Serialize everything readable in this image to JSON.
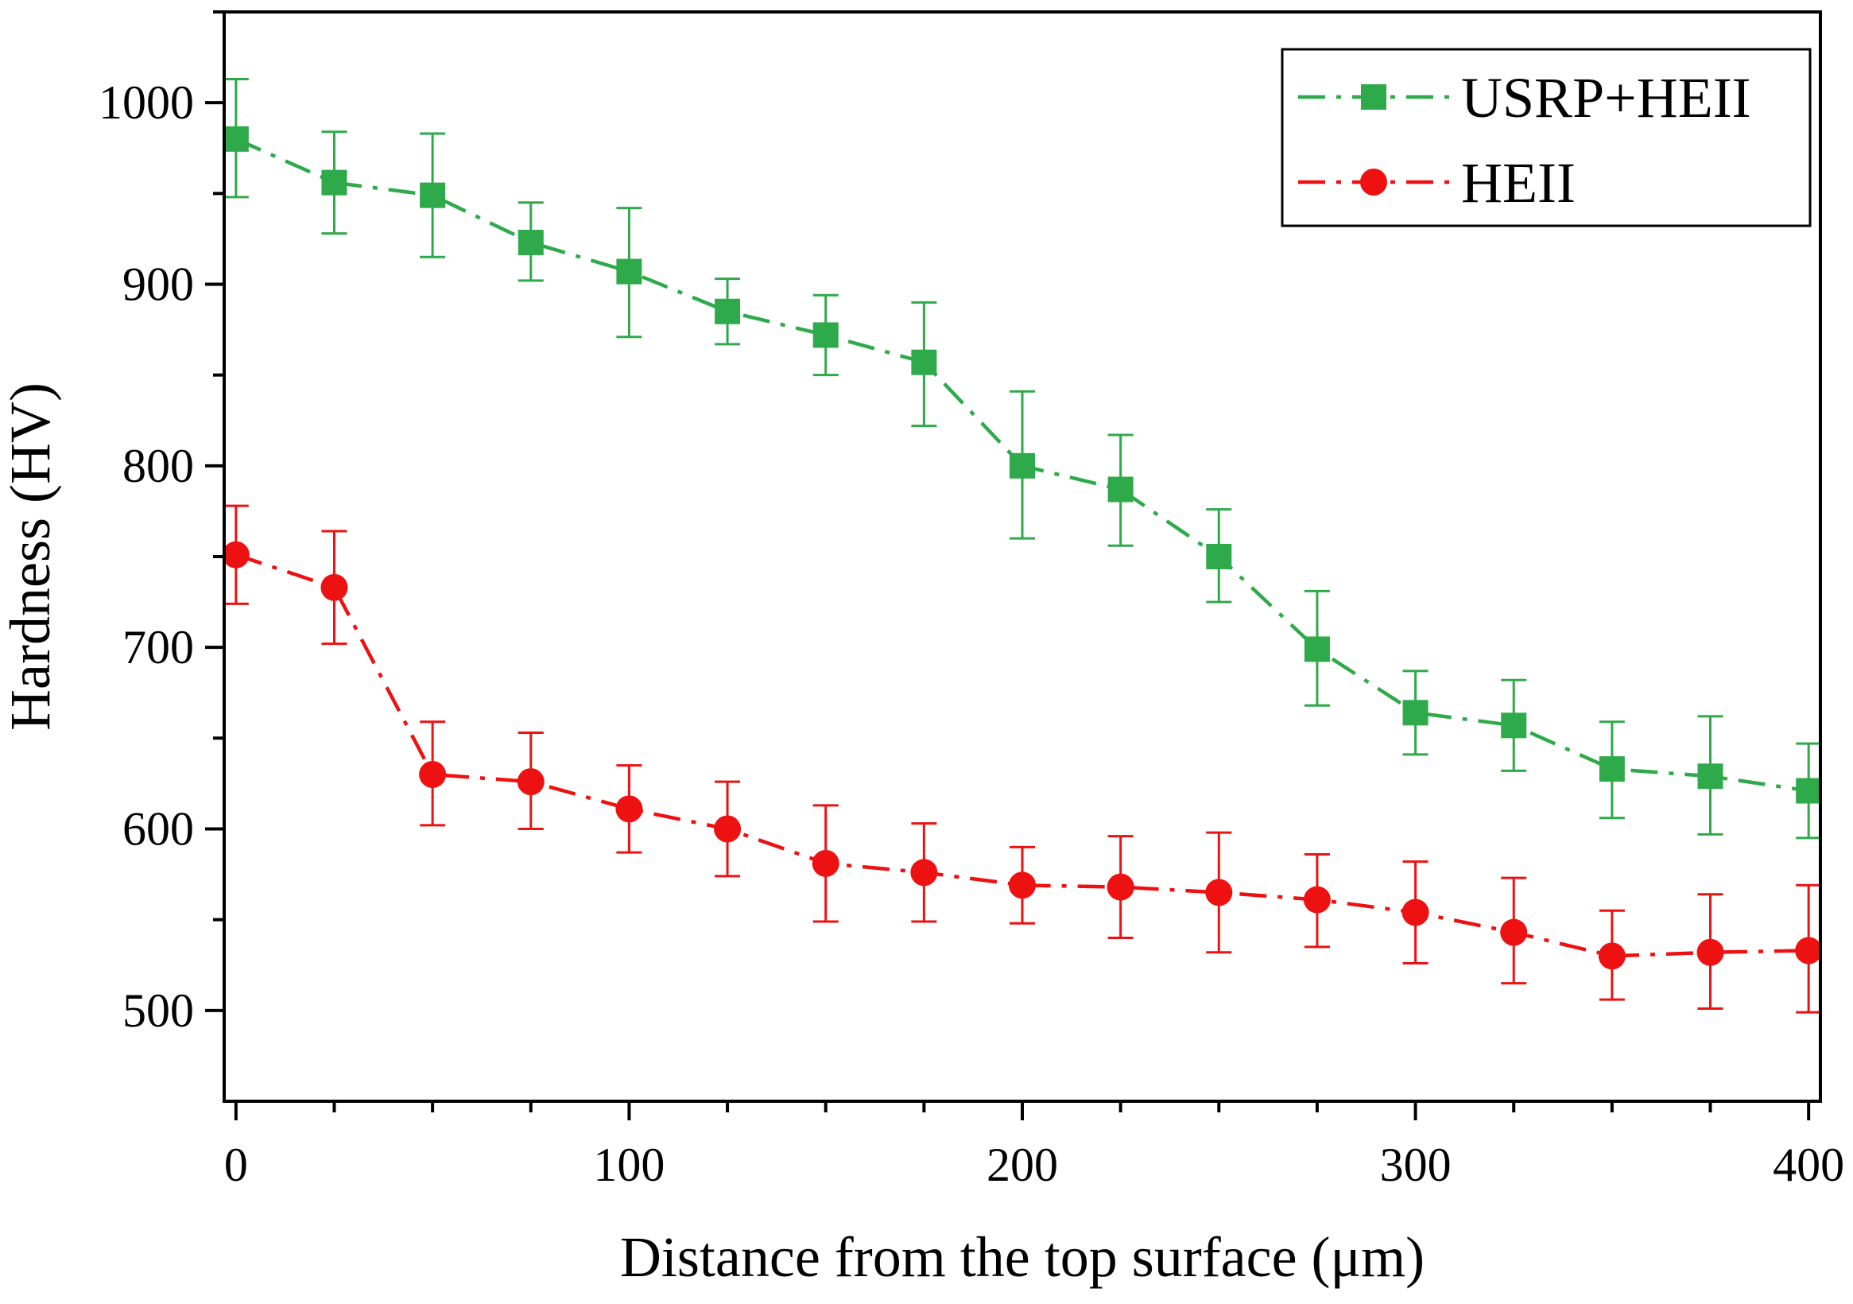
{
  "chart_data": {
    "type": "line",
    "title": "",
    "xlabel": "Distance from the top surface (μm)",
    "ylabel": "Hardness (HV)",
    "xlim": [
      -3,
      403
    ],
    "ylim": [
      450,
      1050
    ],
    "x_ticks": [
      0,
      100,
      200,
      300,
      400
    ],
    "x_tick_labels": [
      "0",
      "100",
      "200",
      "300",
      "400"
    ],
    "y_ticks": [
      500,
      600,
      700,
      800,
      900,
      1000
    ],
    "y_tick_labels": [
      "500",
      "600",
      "700",
      "800",
      "900",
      "1000"
    ],
    "legend_position": "top-right",
    "x": [
      0,
      25,
      50,
      75,
      100,
      125,
      150,
      175,
      200,
      225,
      250,
      275,
      300,
      325,
      350,
      375,
      400
    ],
    "series": [
      {
        "name": "USRP+HEII",
        "color": "#2eaa4a",
        "marker": "square",
        "line_style": "dash-dot",
        "values": [
          980,
          956,
          949,
          923,
          907,
          885,
          872,
          857,
          800,
          787,
          750,
          699,
          664,
          657,
          633,
          629,
          621
        ],
        "error_low": [
          948,
          928,
          915,
          902,
          871,
          867,
          850,
          822,
          760,
          756,
          725,
          668,
          641,
          632,
          606,
          597,
          595
        ],
        "error_high": [
          1013,
          984,
          983,
          945,
          942,
          903,
          894,
          890,
          841,
          817,
          776,
          731,
          687,
          682,
          659,
          662,
          647
        ]
      },
      {
        "name": "HEII",
        "color": "#ee1111",
        "marker": "circle",
        "line_style": "dash-dot",
        "values": [
          751,
          733,
          630,
          626,
          611,
          600,
          581,
          576,
          569,
          568,
          565,
          561,
          554,
          543,
          530,
          532,
          533
        ],
        "error_low": [
          724,
          702,
          602,
          600,
          587,
          574,
          549,
          549,
          548,
          540,
          532,
          535,
          526,
          515,
          506,
          501,
          499
        ],
        "error_high": [
          778,
          764,
          659,
          653,
          635,
          626,
          613,
          603,
          590,
          596,
          598,
          586,
          582,
          573,
          555,
          564,
          569
        ]
      }
    ]
  }
}
